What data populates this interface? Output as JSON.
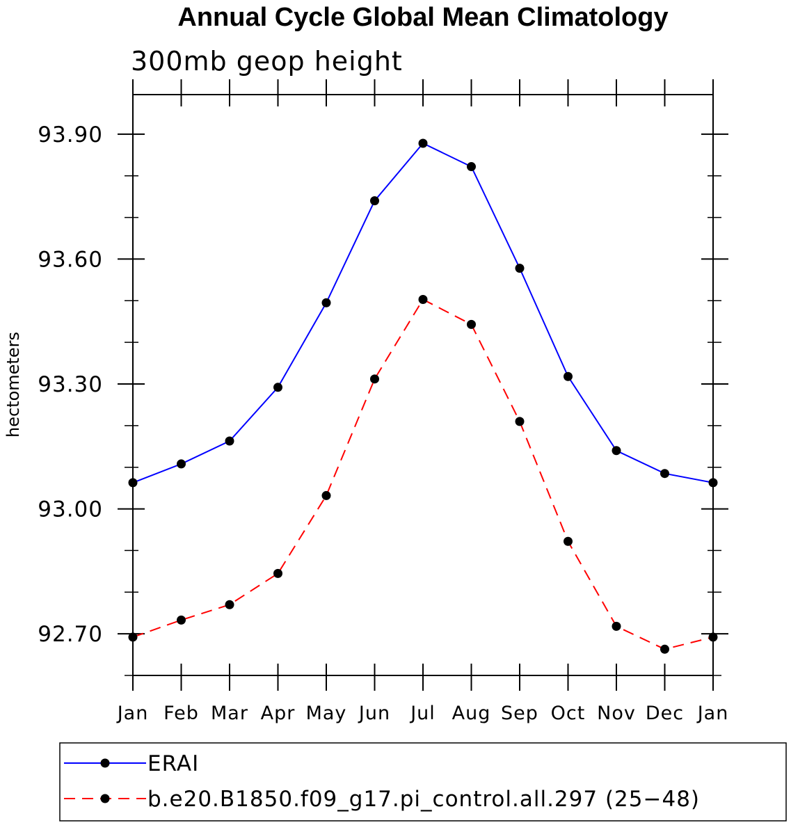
{
  "chart_data": {
    "type": "line",
    "title": "Annual Cycle Global Mean Climatology",
    "subtitle": "300mb geop height",
    "xlabel": "",
    "ylabel": "hectometers",
    "categories": [
      "Jan",
      "Feb",
      "Mar",
      "Apr",
      "May",
      "Jun",
      "Jul",
      "Aug",
      "Sep",
      "Oct",
      "Nov",
      "Dec",
      "Jan"
    ],
    "ylim": [
      92.6,
      93.995
    ],
    "yticks": [
      92.7,
      93.0,
      93.3,
      93.6,
      93.9
    ],
    "ytick_labels": [
      "92.70",
      "93.00",
      "93.30",
      "93.60",
      "93.90"
    ],
    "yminor_step": 0.1,
    "grid": false,
    "legend_position": "bottom",
    "series": [
      {
        "name": "ERAI",
        "color": "#0000ff",
        "line_style": "solid",
        "marker": "filled-circle",
        "values": [
          93.063,
          93.108,
          93.163,
          93.292,
          93.495,
          93.74,
          93.878,
          93.822,
          93.578,
          93.318,
          93.14,
          93.085,
          93.063
        ]
      },
      {
        "name": "b.e20.B1850.f09_g17.pi_control.all.297 (25−48)",
        "color": "#ff0000",
        "line_style": "dashed",
        "marker": "filled-circle",
        "values": [
          92.692,
          92.733,
          92.77,
          92.845,
          93.032,
          93.312,
          93.503,
          93.443,
          93.21,
          92.922,
          92.718,
          92.663,
          92.692
        ]
      }
    ]
  }
}
